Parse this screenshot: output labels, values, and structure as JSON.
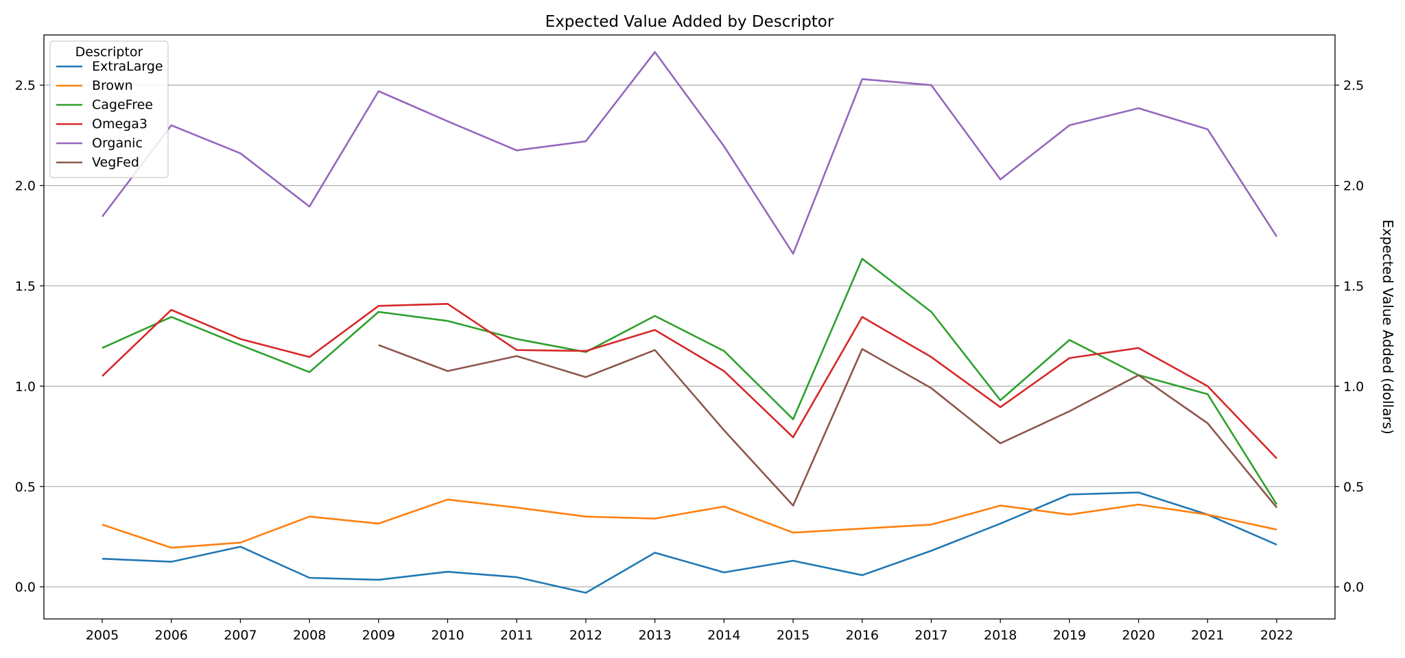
{
  "chart_data": {
    "type": "line",
    "title": "Expected Value Added by Descriptor",
    "xlabel": "",
    "ylabel": "Expected Value Added (dollars)",
    "ylim": [
      -0.16,
      2.75
    ],
    "yticks": [
      0.0,
      0.5,
      1.0,
      1.5,
      2.0,
      2.5
    ],
    "ytick_labels": [
      "0.0",
      "0.5",
      "1.0",
      "1.5",
      "2.0",
      "2.5"
    ],
    "grid": "horizontal",
    "legend": {
      "title": "Descriptor",
      "placement": "top-left"
    },
    "x": [
      "2005",
      "2006",
      "2007",
      "2008",
      "2009",
      "2010",
      "2011",
      "2012",
      "2013",
      "2014",
      "2015",
      "2016",
      "2017",
      "2018",
      "2019",
      "2020",
      "2021",
      "2022"
    ],
    "series": [
      {
        "name": "ExtraLarge",
        "color": "#1f77b4",
        "values": [
          0.14,
          0.125,
          0.2,
          0.045,
          0.035,
          0.075,
          0.048,
          -0.03,
          0.17,
          0.072,
          0.13,
          0.058,
          0.18,
          0.315,
          0.46,
          0.47,
          0.36,
          0.21
        ]
      },
      {
        "name": "Brown",
        "color": "#ff7f0e",
        "values": [
          0.31,
          0.195,
          0.22,
          0.35,
          0.315,
          0.435,
          0.395,
          0.35,
          0.34,
          0.4,
          0.27,
          0.29,
          0.31,
          0.405,
          0.36,
          0.41,
          0.36,
          0.285
        ]
      },
      {
        "name": "CageFree",
        "color": "#2ca02c",
        "values": [
          1.19,
          1.345,
          1.205,
          1.07,
          1.37,
          1.325,
          1.235,
          1.17,
          1.35,
          1.175,
          0.835,
          1.635,
          1.37,
          0.93,
          1.23,
          1.055,
          0.96,
          0.41
        ]
      },
      {
        "name": "Omega3",
        "color": "#d62728",
        "values": [
          1.05,
          1.38,
          1.235,
          1.145,
          1.4,
          1.41,
          1.18,
          1.175,
          1.28,
          1.075,
          0.745,
          1.345,
          1.145,
          0.895,
          1.14,
          1.19,
          1.0,
          0.64
        ]
      },
      {
        "name": "Organic",
        "color": "#9467bd",
        "values": [
          1.845,
          2.3,
          2.16,
          1.895,
          2.47,
          2.32,
          2.175,
          2.22,
          2.665,
          2.195,
          1.66,
          2.53,
          2.5,
          2.03,
          2.3,
          2.385,
          2.28,
          1.745
        ]
      },
      {
        "name": "VegFed",
        "color": "#8c564b",
        "values": [
          null,
          null,
          null,
          null,
          1.205,
          1.075,
          1.15,
          1.045,
          1.18,
          0.78,
          0.405,
          1.185,
          0.99,
          0.715,
          0.875,
          1.055,
          0.815,
          0.395
        ]
      }
    ]
  }
}
